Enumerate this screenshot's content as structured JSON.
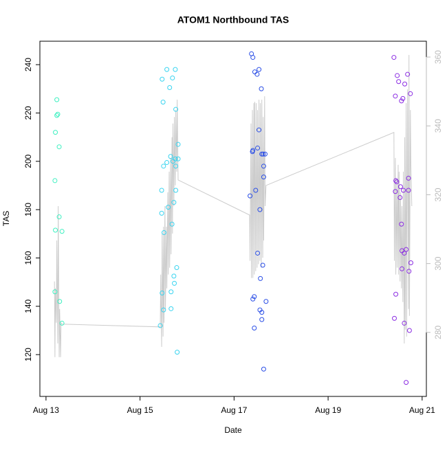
{
  "chart_data": {
    "type": "scatter",
    "title": "ATOM1 Northbound TAS",
    "x_label": "Date",
    "y_label": "TAS",
    "xlim": [
      12.87,
      21.09
    ],
    "xticks": [
      {
        "value": 13,
        "label": "Aug 13"
      },
      {
        "value": 15,
        "label": "Aug 15"
      },
      {
        "value": 17,
        "label": "Aug 17"
      },
      {
        "value": 19,
        "label": "Aug 19"
      },
      {
        "value": 21,
        "label": "Aug 21"
      }
    ],
    "ylim": [
      102.7,
      249.7
    ],
    "yticks": [
      120,
      140,
      160,
      180,
      200,
      220,
      240
    ],
    "y2lim": [
      261.4,
      364.6
    ],
    "y2ticks": [
      280,
      300,
      320,
      340,
      360
    ],
    "y2_color": "#bbbbbb",
    "series": [
      {
        "type": "scatter",
        "color": "#3cf0c0",
        "x": [
          13.19,
          13.19,
          13.2,
          13.23,
          13.25,
          13.23,
          13.28,
          13.28,
          13.29,
          13.34,
          13.2,
          13.34
        ],
        "values": [
          146,
          192,
          212,
          219,
          219.5,
          225.5,
          206,
          177,
          142,
          171,
          171.5,
          133
        ]
      },
      {
        "type": "scatter",
        "color": "#38d4f0",
        "x": [
          15.43,
          15.46,
          15.46,
          15.47,
          15.47,
          15.49,
          15.5,
          15.5,
          15.51,
          15.57,
          15.57,
          15.6,
          15.63,
          15.65,
          15.66,
          15.66,
          15.68,
          15.69,
          15.7,
          15.72,
          15.72,
          15.73,
          15.75,
          15.76,
          15.75,
          15.76,
          15.76,
          15.78,
          15.79,
          15.81,
          15.81
        ],
        "values": [
          132,
          188,
          178.5,
          145.5,
          234,
          224.5,
          138.5,
          198,
          170.5,
          238,
          199.5,
          181,
          230.5,
          202,
          146,
          139,
          174,
          234.5,
          200,
          183,
          152.5,
          149.5,
          238,
          221.5,
          201,
          198,
          188,
          156,
          121,
          207,
          201
        ]
      },
      {
        "type": "scatter",
        "color": "#2a4ee6",
        "x": [
          17.34,
          17.37,
          17.39,
          17.4,
          17.4,
          17.4,
          17.43,
          17.43,
          17.44,
          17.46,
          17.49,
          17.5,
          17.5,
          17.53,
          17.53,
          17.55,
          17.55,
          17.56,
          17.58,
          17.59,
          17.59,
          17.59,
          17.61,
          17.62,
          17.63,
          17.63,
          17.66,
          17.68,
          17.63
        ],
        "values": [
          185.7,
          244.5,
          204,
          243,
          204.5,
          143,
          144,
          131,
          237,
          188,
          236,
          205.5,
          162,
          238,
          213,
          138.5,
          180,
          151.5,
          230,
          203,
          137.5,
          134.5,
          157,
          203,
          193.5,
          198,
          203,
          142,
          114
        ]
      },
      {
        "type": "scatter",
        "color": "#8a2be2",
        "x": [
          20.4,
          20.41,
          20.43,
          20.43,
          20.44,
          20.46,
          20.44,
          20.47,
          20.5,
          20.53,
          20.54,
          20.56,
          20.56,
          20.57,
          20.57,
          20.59,
          20.6,
          20.62,
          20.62,
          20.63,
          20.66,
          20.66,
          20.69,
          20.71,
          20.71,
          20.72,
          20.73,
          20.75,
          20.76
        ],
        "values": [
          243,
          135,
          227,
          187.5,
          192,
          191.5,
          145,
          235.5,
          233,
          185,
          189.5,
          225,
          174,
          163,
          155.5,
          226,
          188,
          162,
          133,
          232,
          108.5,
          163.5,
          236,
          193,
          188,
          154.5,
          130,
          228,
          158
        ]
      },
      {
        "type": "line",
        "axis": "y2",
        "color": "#cccccc",
        "x": [
          13.18,
          13.19,
          13.2,
          13.22,
          13.23,
          13.25,
          13.26,
          13.28,
          13.29,
          13.31,
          13.32,
          13.34,
          15.43,
          15.44,
          15.46,
          15.47,
          15.49,
          15.5,
          15.51,
          15.53,
          15.54,
          15.56,
          15.57,
          15.59,
          15.6,
          15.62,
          15.63,
          15.65,
          15.66,
          15.68,
          15.69,
          15.7,
          15.72,
          15.73,
          15.75,
          15.76,
          15.78,
          15.79,
          15.81,
          17.33,
          17.34,
          17.36,
          17.37,
          17.39,
          17.4,
          17.42,
          17.43,
          17.44,
          17.46,
          17.47,
          17.49,
          17.5,
          17.52,
          17.53,
          17.55,
          17.56,
          17.58,
          17.59,
          17.61,
          17.62,
          17.63,
          17.65,
          17.66,
          17.68,
          20.4,
          20.41,
          20.43,
          20.44,
          20.46,
          20.47,
          20.49,
          20.5,
          20.51,
          20.53,
          20.54,
          20.56,
          20.57,
          20.59,
          20.6,
          20.62,
          20.63,
          20.64,
          20.66,
          20.67,
          20.69,
          20.71,
          20.72,
          20.73,
          20.75,
          20.76,
          20.78
        ],
        "values": [
          294.8,
          272.8,
          292.8,
          282.8,
          306.7,
          276.8,
          316.7,
          272.8,
          286.8,
          272.8,
          282.8,
          282.4,
          281.6,
          296.8,
          275.8,
          308.7,
          278.8,
          310.7,
          282.8,
          316.7,
          286.8,
          310.7,
          292.8,
          320.7,
          296.8,
          326.7,
          298.8,
          330.7,
          302.7,
          336.7,
          308.7,
          340.7,
          316.7,
          342.6,
          322.7,
          344.6,
          326.7,
          347.6,
          324.3,
          314.1,
          300.8,
          340.7,
          295.8,
          344.6,
          295.8,
          346.6,
          296.8,
          347.0,
          297.8,
          346.6,
          298.8,
          344.6,
          299.8,
          347.6,
          300.8,
          346.6,
          298.8,
          347.6,
          301.7,
          342.6,
          306.7,
          348.6,
          316.7,
          322.7,
          338.1,
          300.8,
          330.7,
          296.8,
          324.7,
          298.8,
          328.7,
          296.8,
          326.7,
          294.8,
          320.7,
          292.8,
          316.7,
          288.8,
          326.7,
          276.8,
          336.7,
          280.8,
          346.6,
          278.8,
          350.6,
          286.8,
          360.6,
          284.8,
          344.6,
          328.7,
          316.7
        ]
      }
    ]
  }
}
